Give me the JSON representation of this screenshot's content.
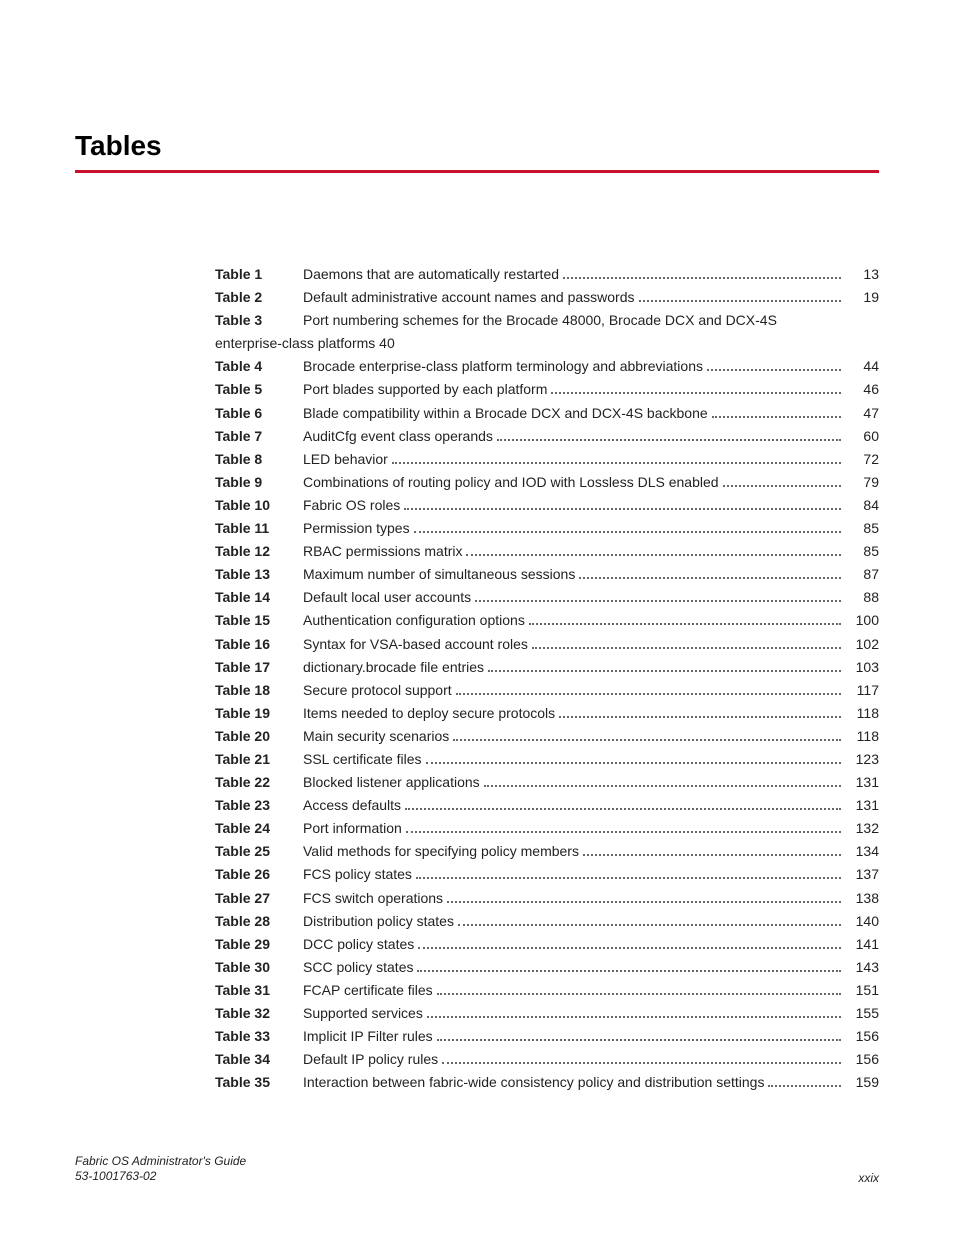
{
  "heading": "Tables",
  "colors": {
    "rule": "#c8102e",
    "text": "#222222",
    "background": "#ffffff"
  },
  "typography": {
    "heading_fontsize_pt": 24,
    "body_fontsize_pt": 10.5,
    "footer_fontsize_pt": 9,
    "font_family": "Arial"
  },
  "entries": [
    {
      "label": "Table 1",
      "title": "Daemons that are automatically restarted",
      "page": "13"
    },
    {
      "label": "Table 2",
      "title": "Default administrative account names and passwords",
      "page": "19"
    },
    {
      "label": "Table 3",
      "title": "Port numbering schemes for the Brocade 48000, Brocade DCX and DCX-4S enterprise-class platforms",
      "page": "40",
      "multiline": true
    },
    {
      "label": "Table 4",
      "title": "Brocade enterprise-class platform terminology and abbreviations",
      "page": "44"
    },
    {
      "label": "Table 5",
      "title": "Port blades supported by each platform",
      "page": "46"
    },
    {
      "label": "Table 6",
      "title": "Blade compatibility within a Brocade DCX and DCX-4S backbone",
      "page": "47"
    },
    {
      "label": "Table 7",
      "title": "AuditCfg event class operands",
      "page": "60"
    },
    {
      "label": "Table 8",
      "title": "LED behavior",
      "page": "72"
    },
    {
      "label": "Table 9",
      "title": "Combinations of routing policy and IOD with Lossless DLS enabled",
      "page": "79"
    },
    {
      "label": "Table 10",
      "title": "Fabric OS roles",
      "page": "84"
    },
    {
      "label": "Table 11",
      "title": "Permission types",
      "page": "85"
    },
    {
      "label": "Table 12",
      "title": "RBAC permissions matrix",
      "page": "85"
    },
    {
      "label": "Table 13",
      "title": "Maximum number of simultaneous sessions",
      "page": "87"
    },
    {
      "label": "Table 14",
      "title": "Default local user accounts",
      "page": "88"
    },
    {
      "label": "Table 15",
      "title": "Authentication configuration options",
      "page": "100"
    },
    {
      "label": "Table 16",
      "title": "Syntax for VSA-based account roles",
      "page": "102"
    },
    {
      "label": "Table 17",
      "title": "dictionary.brocade file entries",
      "page": "103"
    },
    {
      "label": "Table 18",
      "title": "Secure protocol support",
      "page": "117"
    },
    {
      "label": "Table 19",
      "title": "Items needed to deploy secure protocols",
      "page": "118"
    },
    {
      "label": "Table 20",
      "title": "Main security scenarios",
      "page": "118"
    },
    {
      "label": "Table 21",
      "title": "SSL certificate files",
      "page": "123"
    },
    {
      "label": "Table 22",
      "title": "Blocked listener applications",
      "page": "131"
    },
    {
      "label": "Table 23",
      "title": "Access defaults",
      "page": "131"
    },
    {
      "label": "Table 24",
      "title": "Port information",
      "page": "132"
    },
    {
      "label": "Table 25",
      "title": "Valid methods for specifying policy members",
      "page": "134"
    },
    {
      "label": "Table 26",
      "title": "FCS policy states",
      "page": "137"
    },
    {
      "label": "Table 27",
      "title": "FCS switch operations",
      "page": "138"
    },
    {
      "label": "Table 28",
      "title": "Distribution policy states",
      "page": "140"
    },
    {
      "label": "Table 29",
      "title": "DCC policy states",
      "page": "141"
    },
    {
      "label": "Table 30",
      "title": "SCC policy states",
      "page": "143"
    },
    {
      "label": "Table 31",
      "title": "FCAP certificate files",
      "page": "151"
    },
    {
      "label": "Table 32",
      "title": "Supported services",
      "page": "155"
    },
    {
      "label": "Table 33",
      "title": "Implicit IP Filter rules",
      "page": "156"
    },
    {
      "label": "Table 34",
      "title": "Default IP policy rules",
      "page": "156"
    },
    {
      "label": "Table 35",
      "title": "Interaction between fabric-wide consistency policy and distribution settings",
      "page": "159"
    }
  ],
  "footer": {
    "title": "Fabric OS Administrator's Guide",
    "docnum": "53-1001763-02",
    "folio": "xxix"
  }
}
